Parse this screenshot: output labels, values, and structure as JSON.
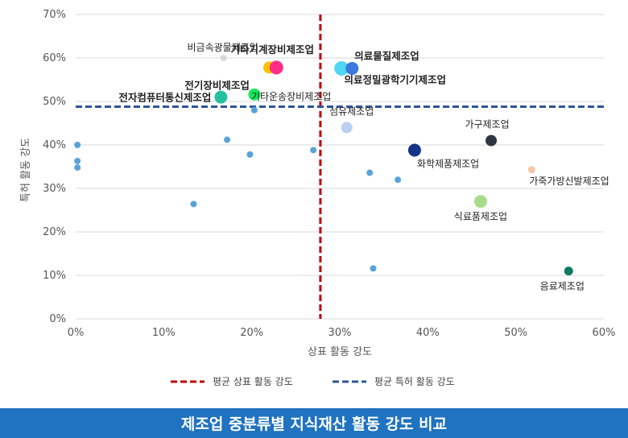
{
  "chart_data": {
    "type": "scatter",
    "title": "제조업 중분류별 지식재산 활동 강도 비교",
    "xlabel": "상표 활동 강도",
    "ylabel": "특허 활동 강도",
    "xlim": [
      0,
      60
    ],
    "ylim": [
      0,
      70
    ],
    "x_ticks": [
      "0%",
      "10%",
      "20%",
      "30%",
      "40%",
      "50%",
      "60%"
    ],
    "y_ticks": [
      "0%",
      "10%",
      "20%",
      "30%",
      "40%",
      "50%",
      "60%",
      "70%"
    ],
    "grid": "horizontal",
    "reference_lines": [
      {
        "label": "평균 상표 활동 강도",
        "axis": "x",
        "value": 27.8,
        "color": "#c00000"
      },
      {
        "label": "평균 특허 활동 강도",
        "axis": "y",
        "value": 48.8,
        "color": "#2e5597"
      }
    ],
    "legend_position": "bottom",
    "points": [
      {
        "x": 16.8,
        "y": 60.0,
        "label": "비금속광물제조업",
        "color": "#d9d9d9",
        "size": 7,
        "bold": false
      },
      {
        "x": 22.0,
        "y": 57.8,
        "label": "",
        "color": "#ffc000",
        "size": 14,
        "bold": false
      },
      {
        "x": 22.8,
        "y": 57.8,
        "label": "기타기계장비제조업",
        "color": "#ff2d87",
        "size": 16,
        "bold": true
      },
      {
        "x": 30.2,
        "y": 57.6,
        "label": "",
        "color": "#4fd6f2",
        "size": 17,
        "bold": false
      },
      {
        "x": 31.4,
        "y": 57.6,
        "label": "의료물질제조업",
        "color": "#3b78e0",
        "size": 15,
        "bold": true
      },
      {
        "x": 20.3,
        "y": 51.6,
        "label": "전기장비제조업",
        "color": "#17e85a",
        "size": 14,
        "bold": true
      },
      {
        "x": 16.5,
        "y": 51.0,
        "label": "전자컴퓨터통신제조업",
        "color": "#26c0a0",
        "size": 15,
        "bold": true
      },
      {
        "x": 20.3,
        "y": 48.0,
        "label": "기타운송장비제조업",
        "color": "#5aa3d8",
        "size": 7,
        "bold": false
      },
      {
        "x": 30.8,
        "y": 44.0,
        "label": "섬유제조업",
        "color": "#b9d1f0",
        "size": 13,
        "bold": false
      },
      {
        "x": 47.2,
        "y": 41.0,
        "label": "가구제조업",
        "color": "#2e3440",
        "size": 13,
        "bold": false
      },
      {
        "x": 38.5,
        "y": 38.8,
        "label": "화학제품제조업",
        "color": "#16338a",
        "size": 15,
        "bold": false
      },
      {
        "x": 51.8,
        "y": 34.3,
        "label": "가죽가방신발제조업",
        "color": "#f5c7a6",
        "size": 8,
        "bold": false
      },
      {
        "x": 46.0,
        "y": 27.0,
        "label": "식료품제조업",
        "color": "#a8dc8a",
        "size": 15,
        "bold": false
      },
      {
        "x": 56.0,
        "y": 11.0,
        "label": "음료제조업",
        "color": "#0e7a63",
        "size": 10,
        "bold": false
      },
      {
        "x": 0.2,
        "y": 40.0,
        "label": "",
        "color": "#5aa3d8",
        "size": 7,
        "bold": false
      },
      {
        "x": 0.2,
        "y": 36.3,
        "label": "",
        "color": "#5aa3d8",
        "size": 7,
        "bold": false
      },
      {
        "x": 0.2,
        "y": 34.8,
        "label": "",
        "color": "#5aa3d8",
        "size": 7,
        "bold": false
      },
      {
        "x": 13.4,
        "y": 26.4,
        "label": "",
        "color": "#5aa3d8",
        "size": 7,
        "bold": false
      },
      {
        "x": 17.2,
        "y": 41.2,
        "label": "",
        "color": "#5aa3d8",
        "size": 7,
        "bold": false
      },
      {
        "x": 19.8,
        "y": 37.8,
        "label": "",
        "color": "#5aa3d8",
        "size": 7,
        "bold": false
      },
      {
        "x": 27.0,
        "y": 38.8,
        "label": "",
        "color": "#5aa3d8",
        "size": 7,
        "bold": false
      },
      {
        "x": 33.4,
        "y": 33.6,
        "label": "",
        "color": "#5aa3d8",
        "size": 7,
        "bold": false
      },
      {
        "x": 36.6,
        "y": 32.0,
        "label": "",
        "color": "#5aa3d8",
        "size": 7,
        "bold": false
      },
      {
        "x": 33.8,
        "y": 11.6,
        "label": "",
        "color": "#5aa3d8",
        "size": 7,
        "bold": false
      }
    ],
    "extra_labels": [
      {
        "text": "의료정밀광학기기제조업",
        "x": 30.5,
        "y": 54.9,
        "anchor": "start"
      }
    ]
  },
  "colors": {
    "footer_bg": "#1f73c0",
    "grid": "#d9d9d9"
  }
}
